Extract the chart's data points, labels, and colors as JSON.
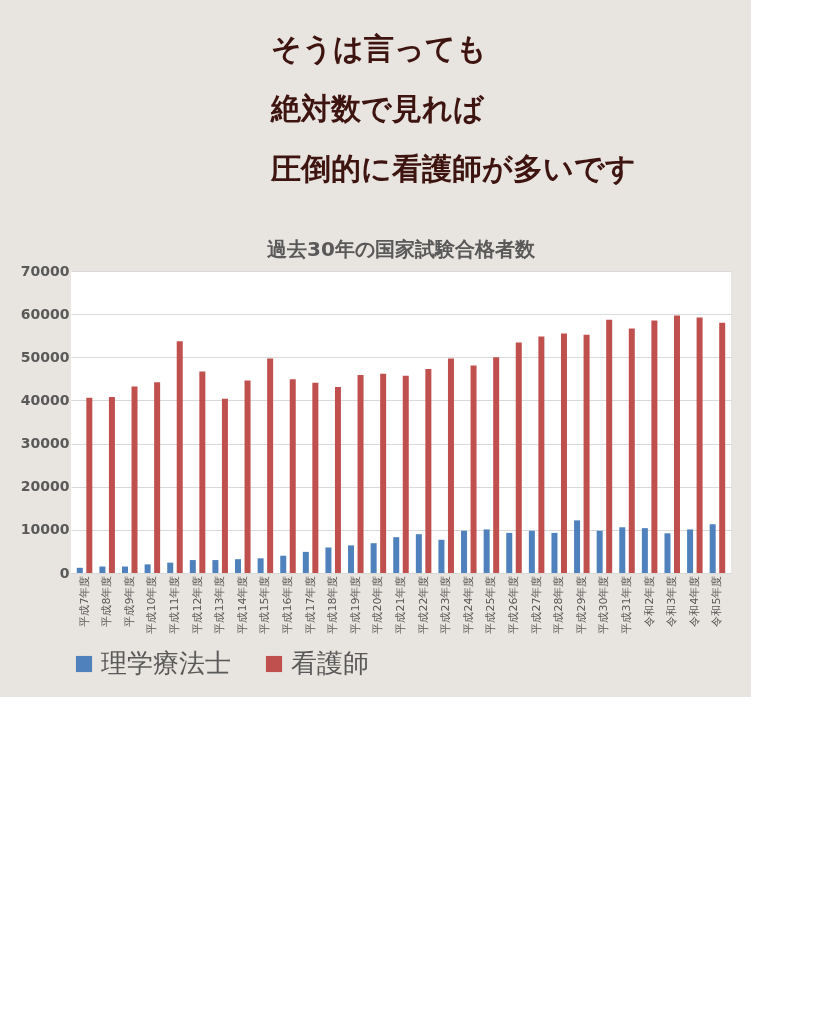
{
  "chart_data": {
    "type": "bar",
    "title": "過去30年の国家試験合格者数",
    "annotations": [
      "そうは言っても",
      "絶対数で見れば",
      "圧倒的に看護師が多いです"
    ],
    "categories": [
      "平成7年度",
      "平成8年度",
      "平成9年度",
      "平成10年度",
      "平成11年度",
      "平成12年度",
      "平成13年度",
      "平成14年度",
      "平成15年度",
      "平成16年度",
      "平成17年度",
      "平成18年度",
      "平成19年度",
      "平成20年度",
      "平成21年度",
      "平成22年度",
      "平成23年度",
      "平成24年度",
      "平成25年度",
      "平成26年度",
      "平成27年度",
      "平成28年度",
      "平成29年度",
      "平成30年度",
      "平成31年度",
      "令和2年度",
      "令和3年度",
      "令和4年度",
      "令和5年度"
    ],
    "series": [
      {
        "name": "理学療法士",
        "color": "#4f81bd",
        "values": [
          1200,
          1500,
          1500,
          2000,
          2400,
          3000,
          3000,
          3200,
          3400,
          4000,
          4900,
          5900,
          6400,
          6900,
          8300,
          9000,
          7700,
          9800,
          10100,
          9300,
          9800,
          9300,
          12200,
          9800,
          10600,
          10400,
          9200,
          10100,
          11300
        ]
      },
      {
        "name": "看護師",
        "color": "#c0504d",
        "values": [
          40600,
          40800,
          43200,
          44200,
          53700,
          46700,
          40400,
          44600,
          49700,
          44900,
          44100,
          43100,
          45900,
          46200,
          45700,
          47300,
          49700,
          48100,
          50000,
          53400,
          54800,
          55500,
          55200,
          58700,
          56700,
          58500,
          59700,
          59200,
          58000
        ]
      }
    ],
    "ylim": [
      0,
      70000
    ],
    "yticks": [
      0,
      10000,
      20000,
      30000,
      40000,
      50000,
      60000,
      70000
    ],
    "grid": "y",
    "legend": "bottom"
  }
}
